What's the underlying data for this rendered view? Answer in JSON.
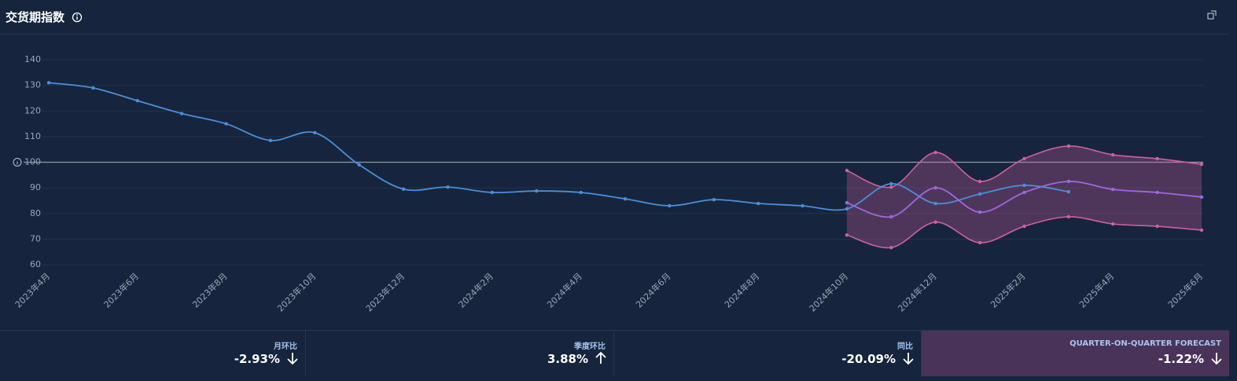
{
  "header": {
    "title": "交货期指数"
  },
  "chart_data": {
    "type": "line",
    "categories": [
      "2023年4月",
      null,
      "2023年6月",
      null,
      "2023年8月",
      null,
      "2023年10月",
      null,
      "2023年12月",
      null,
      "2024年2月",
      null,
      "2024年4月",
      null,
      "2024年6月",
      null,
      "2024年8月",
      null,
      "2024年10月",
      null,
      "2024年12月",
      null,
      "2025年2月",
      null,
      "2025年4月",
      null,
      "2025年6月"
    ],
    "series": [
      {
        "color": "#4a8fdc",
        "values": [
          131,
          129,
          124,
          119,
          115,
          108.5,
          111.5,
          99,
          89.5,
          90.3,
          88.2,
          88.8,
          88.2,
          85.7,
          83,
          85.4,
          83.9,
          83,
          81.8,
          91.6,
          83.9,
          87.6,
          91,
          88.5,
          null,
          null,
          null
        ]
      },
      {
        "color": "#a066e0",
        "values": [
          null,
          null,
          null,
          null,
          null,
          null,
          null,
          null,
          null,
          null,
          null,
          null,
          null,
          null,
          null,
          null,
          null,
          null,
          84.2,
          78.7,
          90,
          80.5,
          88.2,
          92.5,
          89.4,
          88.2,
          86.4
        ]
      }
    ],
    "band": {
      "color": "#d0609e",
      "upper": [
        null,
        null,
        null,
        null,
        null,
        null,
        null,
        null,
        null,
        null,
        null,
        null,
        null,
        null,
        null,
        null,
        null,
        null,
        96.8,
        90.3,
        103.8,
        92.5,
        101.4,
        106.3,
        102.9,
        101.4,
        99.2
      ],
      "lower": [
        null,
        null,
        null,
        null,
        null,
        null,
        null,
        null,
        null,
        null,
        null,
        null,
        null,
        null,
        null,
        null,
        null,
        null,
        71.6,
        66.7,
        76.6,
        68.6,
        75,
        78.7,
        75.9,
        75,
        73.5
      ]
    },
    "reference_line": 100,
    "ylim": [
      60,
      140
    ],
    "yticks": [
      60,
      70,
      80,
      90,
      100,
      110,
      120,
      130,
      140
    ],
    "grid": true
  },
  "stats": [
    {
      "label": "月环比",
      "value": "-2.93%",
      "trend": "down"
    },
    {
      "label": "季度环比",
      "value": "3.88%",
      "trend": "up"
    },
    {
      "label": "同比",
      "value": "-20.09%",
      "trend": "down"
    },
    {
      "label": "QUARTER-ON-QUARTER FORECAST",
      "value": "-1.22%",
      "trend": "down",
      "highlight": true
    }
  ]
}
